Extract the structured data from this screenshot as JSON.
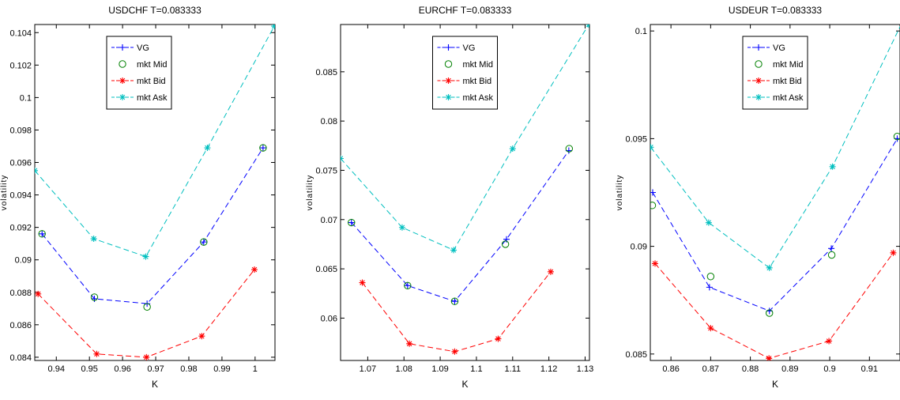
{
  "chart_data": [
    {
      "type": "line",
      "title": "USDCHF T=0.083333",
      "xlabel": "K",
      "ylabel": "volatility",
      "xlim": [
        0.9335,
        1.006
      ],
      "ylim": [
        0.0838,
        0.1045
      ],
      "xticks": [
        0.94,
        0.95,
        0.96,
        0.97,
        0.98,
        0.99,
        1
      ],
      "xtick_labels": [
        "0.94",
        "0.95",
        "0.96",
        "0.97",
        "0.98",
        "0.99",
        "1"
      ],
      "yticks": [
        0.084,
        0.086,
        0.088,
        0.09,
        0.092,
        0.094,
        0.096,
        0.098,
        0.1,
        0.102,
        0.104
      ],
      "ytick_labels": [
        "0.084",
        "0.086",
        "0.088",
        "0.09",
        "0.092",
        "0.094",
        "0.096",
        "0.098",
        "0.1",
        "0.102",
        "0.104"
      ],
      "legend_position": "top-center",
      "series": [
        {
          "name": "VG",
          "color": "#0000ff",
          "marker": "plus",
          "line": true,
          "x": [
            0.9357,
            0.9515,
            0.9674,
            0.9845,
            1.0024
          ],
          "y": [
            0.0916,
            0.0876,
            0.0873,
            0.0911,
            0.0969
          ]
        },
        {
          "name": "mkt Mid",
          "color": "#008000",
          "marker": "circle",
          "line": false,
          "x": [
            0.9357,
            0.9515,
            0.9674,
            0.9845,
            1.0024
          ],
          "y": [
            0.0916,
            0.0877,
            0.0871,
            0.0911,
            0.0969
          ]
        },
        {
          "name": "mkt Bid",
          "color": "#ff0000",
          "marker": "star",
          "line": true,
          "x": [
            0.9345,
            0.9522,
            0.9672,
            0.9839,
            0.9998
          ],
          "y": [
            0.0879,
            0.0842,
            0.084,
            0.0853,
            0.0894
          ]
        },
        {
          "name": "mkt Ask",
          "color": "#00bfbf",
          "marker": "star",
          "line": true,
          "x": [
            0.9335,
            0.9513,
            0.967,
            0.9856,
            1.0058
          ],
          "y": [
            0.0955,
            0.0913,
            0.0902,
            0.0969,
            0.1044
          ]
        }
      ]
    },
    {
      "type": "line",
      "title": "EURCHF T=0.083333",
      "xlabel": "K",
      "ylabel": "volatility",
      "xlim": [
        1.0625,
        1.1312
      ],
      "ylim": [
        0.0557,
        0.0898
      ],
      "xticks": [
        1.07,
        1.08,
        1.09,
        1.1,
        1.11,
        1.12,
        1.13
      ],
      "xtick_labels": [
        "1.07",
        "1.08",
        "1.09",
        "1.1",
        "1.11",
        "1.12",
        "1.13"
      ],
      "yticks": [
        0.06,
        0.065,
        0.07,
        0.075,
        0.08,
        0.085
      ],
      "ytick_labels": [
        "0.06",
        "0.065",
        "0.07",
        "0.075",
        "0.08",
        "0.085"
      ],
      "legend_position": "top-center",
      "series": [
        {
          "name": "VG",
          "color": "#0000ff",
          "marker": "plus",
          "line": true,
          "x": [
            1.0655,
            1.081,
            1.094,
            1.1083,
            1.1255
          ],
          "y": [
            0.0697,
            0.0633,
            0.0617,
            0.068,
            0.077
          ]
        },
        {
          "name": "mkt Mid",
          "color": "#008000",
          "marker": "circle",
          "line": false,
          "x": [
            1.0655,
            1.081,
            1.094,
            1.108,
            1.1256
          ],
          "y": [
            0.0697,
            0.0633,
            0.0617,
            0.0675,
            0.0772
          ]
        },
        {
          "name": "mkt Bid",
          "color": "#ff0000",
          "marker": "star",
          "line": true,
          "x": [
            1.0685,
            1.0815,
            1.094,
            1.106,
            1.1205
          ],
          "y": [
            0.0636,
            0.0574,
            0.0566,
            0.0579,
            0.0647
          ]
        },
        {
          "name": "mkt Ask",
          "color": "#00bfbf",
          "marker": "star",
          "line": true,
          "x": [
            1.0625,
            1.0795,
            1.0937,
            1.11,
            1.131
          ],
          "y": [
            0.0762,
            0.0692,
            0.0669,
            0.0772,
            0.0898
          ]
        }
      ]
    },
    {
      "type": "line",
      "title": "USDEUR T=0.083333",
      "xlabel": "K",
      "ylabel": "volatility",
      "xlim": [
        0.8548,
        0.9177
      ],
      "ylim": [
        0.0847,
        0.1003
      ],
      "xticks": [
        0.86,
        0.87,
        0.88,
        0.89,
        0.9,
        0.91
      ],
      "xtick_labels": [
        "0.86",
        "0.87",
        "0.88",
        "0.89",
        "0.9",
        "0.91"
      ],
      "yticks": [
        0.085,
        0.09,
        0.095,
        0.1
      ],
      "ytick_labels": [
        "0.085",
        "0.09",
        "0.095",
        "0.1"
      ],
      "legend_position": "top-center",
      "series": [
        {
          "name": "VG",
          "color": "#0000ff",
          "marker": "plus",
          "line": true,
          "x": [
            0.8554,
            0.8697,
            0.8848,
            0.9004,
            0.917
          ],
          "y": [
            0.0925,
            0.0881,
            0.087,
            0.0899,
            0.095
          ]
        },
        {
          "name": "mkt Mid",
          "color": "#008000",
          "marker": "circle",
          "line": false,
          "x": [
            0.8553,
            0.87,
            0.8848,
            0.9005,
            0.917
          ],
          "y": [
            0.0919,
            0.0886,
            0.0869,
            0.0896,
            0.0951
          ]
        },
        {
          "name": "mkt Bid",
          "color": "#ff0000",
          "marker": "star",
          "line": true,
          "x": [
            0.856,
            0.87,
            0.8847,
            0.8998,
            0.916
          ],
          "y": [
            0.0892,
            0.0862,
            0.0848,
            0.0856,
            0.0897
          ]
        },
        {
          "name": "mkt Ask",
          "color": "#00bfbf",
          "marker": "star",
          "line": true,
          "x": [
            0.8549,
            0.8695,
            0.8848,
            0.9007,
            0.9185
          ],
          "y": [
            0.0946,
            0.0911,
            0.089,
            0.0937,
            0.1005
          ]
        }
      ]
    }
  ]
}
